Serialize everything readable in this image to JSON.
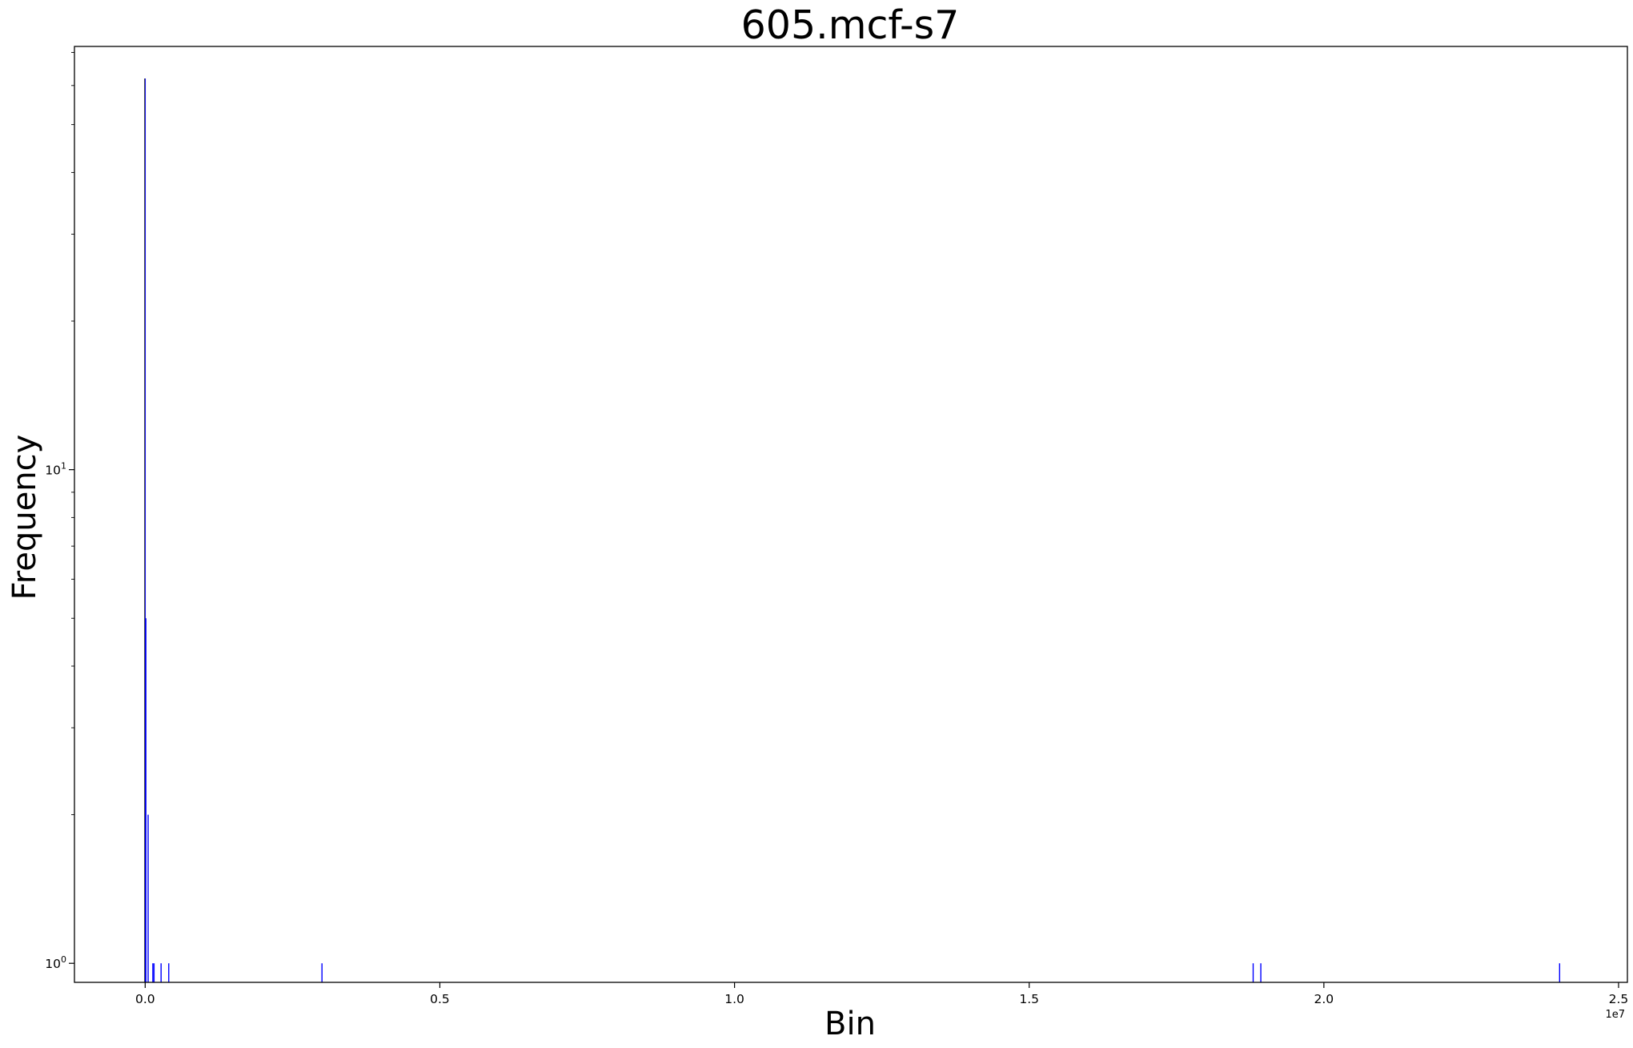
{
  "chart_data": {
    "type": "bar",
    "title": "605.mcf-s7",
    "xlabel": "Bin",
    "ylabel": "Frequency",
    "x_scale": "linear",
    "y_scale": "log",
    "x_offset_label": "1e7",
    "xlim": [
      -1200000,
      25150000
    ],
    "ylim": [
      0.915,
      72
    ],
    "x_ticks": [
      {
        "value": 0,
        "label": "0.0"
      },
      {
        "value": 5000000,
        "label": "0.5"
      },
      {
        "value": 10000000,
        "label": "1.0"
      },
      {
        "value": 15000000,
        "label": "1.5"
      },
      {
        "value": 20000000,
        "label": "2.0"
      },
      {
        "value": 25000000,
        "label": "2.5"
      }
    ],
    "y_ticks": [
      {
        "value": 1,
        "base": "10",
        "exp": "0"
      },
      {
        "value": 10,
        "base": "10",
        "exp": "1"
      }
    ],
    "grid": false,
    "bar_color": "#0000ff",
    "bars": [
      {
        "x": 0,
        "y": 62
      },
      {
        "x": 12000,
        "y": 5
      },
      {
        "x": 50000,
        "y": 2
      },
      {
        "x": 130000,
        "y": 1
      },
      {
        "x": 150000,
        "y": 1
      },
      {
        "x": 270000,
        "y": 1
      },
      {
        "x": 400000,
        "y": 1
      },
      {
        "x": 3000000,
        "y": 1
      },
      {
        "x": 18800000,
        "y": 1
      },
      {
        "x": 18930000,
        "y": 1
      },
      {
        "x": 24000000,
        "y": 1
      }
    ]
  }
}
